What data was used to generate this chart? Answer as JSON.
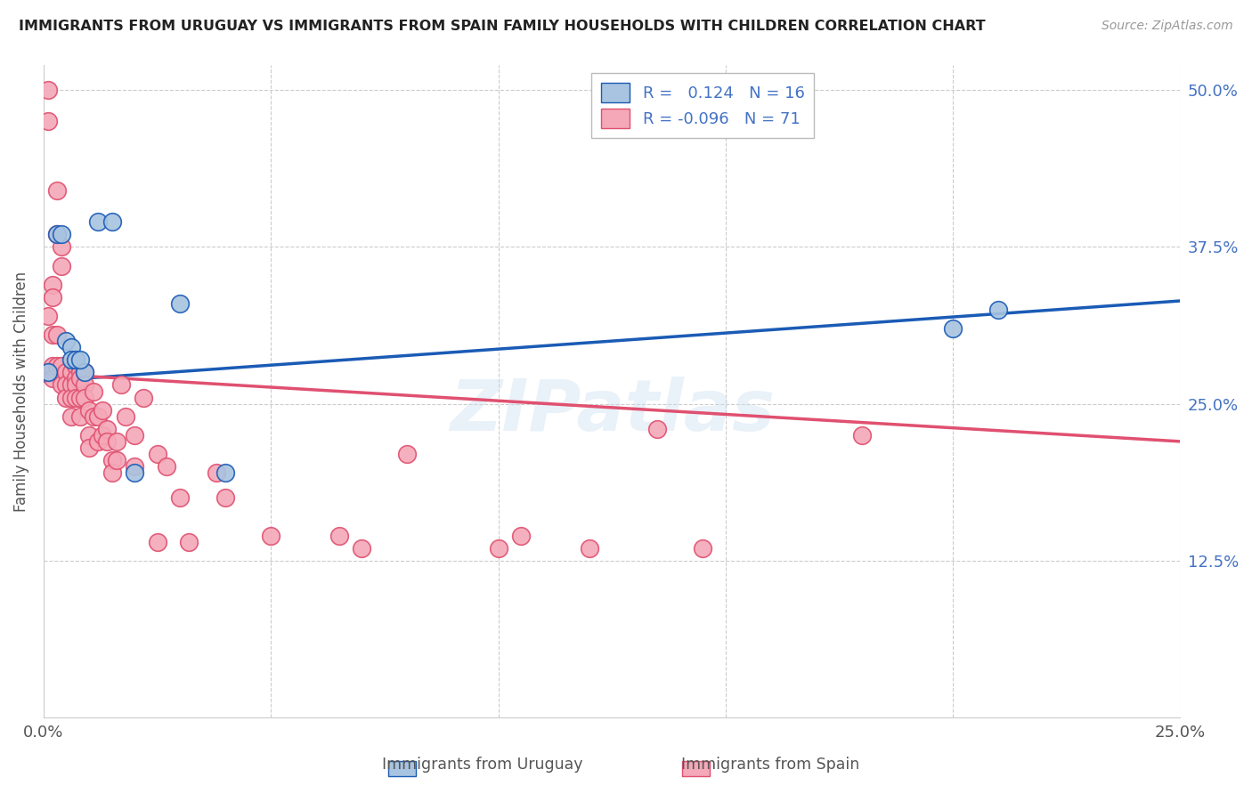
{
  "title": "IMMIGRANTS FROM URUGUAY VS IMMIGRANTS FROM SPAIN FAMILY HOUSEHOLDS WITH CHILDREN CORRELATION CHART",
  "source": "Source: ZipAtlas.com",
  "ylabel": "Family Households with Children",
  "watermark": "ZIPatlas",
  "xlim": [
    0.0,
    0.25
  ],
  "ylim": [
    0.0,
    0.52
  ],
  "xticks": [
    0.0,
    0.05,
    0.1,
    0.15,
    0.2,
    0.25
  ],
  "yticks": [
    0.0,
    0.125,
    0.25,
    0.375,
    0.5
  ],
  "xticklabels": [
    "0.0%",
    "",
    "",
    "",
    "",
    "25.0%"
  ],
  "yticklabels_right": [
    "",
    "12.5%",
    "25.0%",
    "37.5%",
    "50.0%"
  ],
  "legend_r_uruguay": "0.124",
  "legend_n_uruguay": "16",
  "legend_r_spain": "-0.096",
  "legend_n_spain": "71",
  "color_uruguay": "#a8c4e0",
  "color_spain": "#f4a8b8",
  "line_color_uruguay": "#1a5bb5",
  "line_color_spain": "#e05070",
  "trendline_uruguay": [
    0.268,
    0.332
  ],
  "trendline_spain": [
    0.274,
    0.22
  ],
  "uruguay_x": [
    0.001,
    0.003,
    0.004,
    0.005,
    0.006,
    0.006,
    0.007,
    0.009,
    0.012,
    0.015,
    0.02,
    0.03,
    0.04,
    0.2,
    0.21,
    0.008
  ],
  "uruguay_y": [
    0.275,
    0.385,
    0.385,
    0.3,
    0.295,
    0.285,
    0.285,
    0.275,
    0.395,
    0.395,
    0.195,
    0.33,
    0.195,
    0.31,
    0.325,
    0.285
  ],
  "spain_x": [
    0.001,
    0.001,
    0.001,
    0.002,
    0.002,
    0.002,
    0.002,
    0.002,
    0.003,
    0.003,
    0.003,
    0.003,
    0.004,
    0.004,
    0.004,
    0.004,
    0.005,
    0.005,
    0.005,
    0.006,
    0.006,
    0.006,
    0.006,
    0.007,
    0.007,
    0.007,
    0.007,
    0.008,
    0.008,
    0.008,
    0.008,
    0.009,
    0.009,
    0.009,
    0.01,
    0.01,
    0.01,
    0.011,
    0.011,
    0.012,
    0.012,
    0.013,
    0.013,
    0.014,
    0.014,
    0.015,
    0.015,
    0.016,
    0.016,
    0.017,
    0.018,
    0.02,
    0.02,
    0.022,
    0.025,
    0.025,
    0.027,
    0.03,
    0.032,
    0.038,
    0.04,
    0.05,
    0.065,
    0.07,
    0.08,
    0.1,
    0.105,
    0.12,
    0.135,
    0.145,
    0.18
  ],
  "spain_y": [
    0.5,
    0.475,
    0.32,
    0.345,
    0.335,
    0.305,
    0.28,
    0.27,
    0.42,
    0.385,
    0.305,
    0.28,
    0.375,
    0.36,
    0.28,
    0.265,
    0.275,
    0.265,
    0.255,
    0.275,
    0.265,
    0.255,
    0.24,
    0.28,
    0.27,
    0.265,
    0.255,
    0.275,
    0.27,
    0.255,
    0.24,
    0.275,
    0.265,
    0.255,
    0.245,
    0.225,
    0.215,
    0.26,
    0.24,
    0.24,
    0.22,
    0.245,
    0.225,
    0.23,
    0.22,
    0.205,
    0.195,
    0.22,
    0.205,
    0.265,
    0.24,
    0.225,
    0.2,
    0.255,
    0.21,
    0.14,
    0.2,
    0.175,
    0.14,
    0.195,
    0.175,
    0.145,
    0.145,
    0.135,
    0.21,
    0.135,
    0.145,
    0.135,
    0.23,
    0.135,
    0.225
  ]
}
